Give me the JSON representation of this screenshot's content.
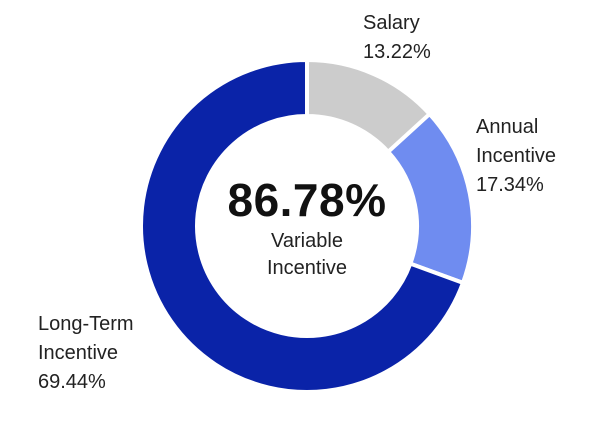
{
  "chart_data": {
    "type": "pie",
    "subtype": "donut",
    "title": "",
    "center": {
      "value": "86.78%",
      "caption_line1": "Variable",
      "caption_line2": "Incentive"
    },
    "slices": [
      {
        "name_line1": "Salary",
        "name_line2": "",
        "value": 13.22,
        "value_label": "13.22%",
        "color": "#cccccc"
      },
      {
        "name_line1": "Annual",
        "name_line2": "Incentive",
        "value": 17.34,
        "value_label": "17.34%",
        "color": "#6f8cf0"
      },
      {
        "name_line1": "Long-Term",
        "name_line2": "Incentive",
        "value": 69.44,
        "value_label": "69.44%",
        "color": "#0a23a8"
      }
    ],
    "start_angle_deg": 0,
    "direction": "clockwise"
  }
}
